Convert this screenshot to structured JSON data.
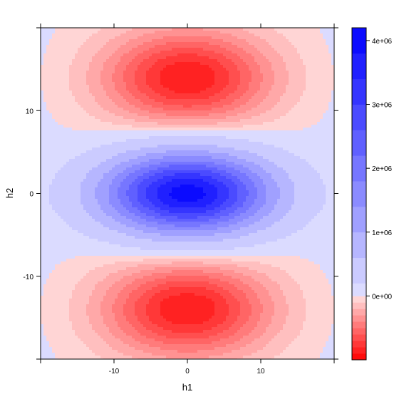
{
  "chart_data": {
    "type": "heatmap",
    "title": "",
    "xlabel": "h1",
    "ylabel": "h2",
    "xlim": [
      -20,
      20
    ],
    "ylim": [
      -20,
      20
    ],
    "x_ticks": [
      -10,
      0,
      10
    ],
    "x_tick_labels": [
      "-10",
      "0",
      "10"
    ],
    "y_ticks": [
      -10,
      0,
      10
    ],
    "y_tick_labels": [
      "-10",
      "0",
      "10"
    ],
    "colorkey": {
      "zlim": [
        -1000000,
        4200000
      ],
      "ticks": [
        0,
        1000000,
        2000000,
        3000000,
        4000000
      ],
      "tick_labels": [
        "0e+00",
        "1e+06",
        "2e+06",
        "3e+06",
        "4e+06"
      ],
      "positive_color": "#0000ff",
      "negative_color": "#ff0000",
      "neutral_color": "#ffffff",
      "levels": [
        -1000000,
        -900000,
        -800000,
        -700000,
        -600000,
        -500000,
        -400000,
        -300000,
        -200000,
        -100000,
        0,
        200000,
        600000,
        1000000,
        1400000,
        1800000,
        2200000,
        2600000,
        3000000,
        3400000,
        3800000,
        4200000
      ]
    },
    "surface_features": [
      {
        "kind": "maximum",
        "h1": 0,
        "h2": 0,
        "value": 4000000
      },
      {
        "kind": "minimum",
        "h1": 0,
        "h2": 14,
        "value": -900000
      },
      {
        "kind": "minimum",
        "h1": 0,
        "h2": -14,
        "value": -900000
      }
    ],
    "grid": false,
    "legend_placement": "right"
  }
}
